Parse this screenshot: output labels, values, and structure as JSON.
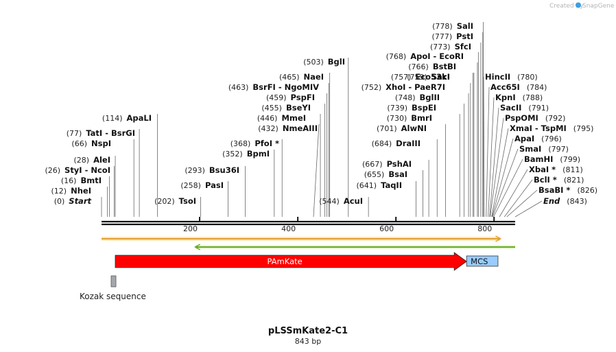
{
  "brand": {
    "created_by": "Created by",
    "name": "SnapGene"
  },
  "sequence": {
    "name": "pLSSmKate2-C1",
    "length_label": "843 bp",
    "length_bp": 843
  },
  "axis": {
    "ticks": [
      {
        "bp": 200,
        "label": "200"
      },
      {
        "bp": 400,
        "label": "400"
      },
      {
        "bp": 600,
        "label": "600"
      },
      {
        "bp": 800,
        "label": "800"
      }
    ]
  },
  "sites": [
    {
      "pos": 0,
      "pos_label": "(0)",
      "name": "Start",
      "italic": true
    },
    {
      "pos": 12,
      "pos_label": "(12)",
      "name": "NheI"
    },
    {
      "pos": 16,
      "pos_label": "(16)",
      "name": "BmtI"
    },
    {
      "pos": 26,
      "pos_label": "(26)",
      "name": "StyI  -  NcoI"
    },
    {
      "pos": 28,
      "pos_label": "(28)",
      "name": "AleI"
    },
    {
      "pos": 66,
      "pos_label": "(66)",
      "name": "NspI"
    },
    {
      "pos": 77,
      "pos_label": "(77)",
      "name": "TatI  -  BsrGI"
    },
    {
      "pos": 114,
      "pos_label": "(114)",
      "name": "ApaLI"
    },
    {
      "pos": 202,
      "pos_label": "(202)",
      "name": "TsoI"
    },
    {
      "pos": 258,
      "pos_label": "(258)",
      "name": "PasI"
    },
    {
      "pos": 293,
      "pos_label": "(293)",
      "name": "Bsu36I"
    },
    {
      "pos": 352,
      "pos_label": "(352)",
      "name": "BpmI"
    },
    {
      "pos": 368,
      "pos_label": "(368)",
      "name": "PfoI *"
    },
    {
      "pos": 432,
      "pos_label": "(432)",
      "name": "NmeAIII"
    },
    {
      "pos": 446,
      "pos_label": "(446)",
      "name": "MmeI"
    },
    {
      "pos": 455,
      "pos_label": "(455)",
      "name": "BseYI"
    },
    {
      "pos": 459,
      "pos_label": "(459)",
      "name": "PspFI"
    },
    {
      "pos": 463,
      "pos_label": "(463)",
      "name": "BsrFI  -  NgoMIV"
    },
    {
      "pos": 465,
      "pos_label": "(465)",
      "name": "NaeI"
    },
    {
      "pos": 503,
      "pos_label": "(503)",
      "name": "BglI"
    },
    {
      "pos": 544,
      "pos_label": "(544)",
      "name": "AcuI"
    },
    {
      "pos": 641,
      "pos_label": "(641)",
      "name": "TaqII"
    },
    {
      "pos": 655,
      "pos_label": "(655)",
      "name": "BsaI"
    },
    {
      "pos": 667,
      "pos_label": "(667)",
      "name": "PshAI"
    },
    {
      "pos": 684,
      "pos_label": "(684)",
      "name": "DraIII"
    },
    {
      "pos": 701,
      "pos_label": "(701)",
      "name": "AlwNI"
    },
    {
      "pos": 730,
      "pos_label": "(730)",
      "name": "BmrI"
    },
    {
      "pos": 739,
      "pos_label": "(739)",
      "name": "BspEI"
    },
    {
      "pos": 748,
      "pos_label": "(748)",
      "name": "BglII"
    },
    {
      "pos": 752,
      "pos_label": "(752)",
      "name": "XhoI  -  PaeR7I"
    },
    {
      "pos": 757,
      "pos_label": "(757)",
      "name": "Eco53kI"
    },
    {
      "pos": 759,
      "pos_label": "(759)",
      "name": "SacI"
    },
    {
      "pos": 766,
      "pos_label": "(766)",
      "name": "BstBI"
    },
    {
      "pos": 768,
      "pos_label": "(768)",
      "name": "ApoI  -  EcoRI"
    },
    {
      "pos": 773,
      "pos_label": "(773)",
      "name": "SfcI"
    },
    {
      "pos": 777,
      "pos_label": "(777)",
      "name": "PstI"
    },
    {
      "pos": 778,
      "pos_label": "(778)",
      "name": "SalI"
    },
    {
      "pos": 780,
      "pos_label": "(780)",
      "name": "HincII"
    },
    {
      "pos": 784,
      "pos_label": "(784)",
      "name": "Acc65I"
    },
    {
      "pos": 788,
      "pos_label": "(788)",
      "name": "KpnI"
    },
    {
      "pos": 791,
      "pos_label": "(791)",
      "name": "SacII"
    },
    {
      "pos": 792,
      "pos_label": "(792)",
      "name": "PspOMI"
    },
    {
      "pos": 795,
      "pos_label": "(795)",
      "name": "XmaI  -  TspMI"
    },
    {
      "pos": 796,
      "pos_label": "(796)",
      "name": "ApaI"
    },
    {
      "pos": 797,
      "pos_label": "(797)",
      "name": "SmaI"
    },
    {
      "pos": 799,
      "pos_label": "(799)",
      "name": "BamHI"
    },
    {
      "pos": 811,
      "pos_label": "(811)",
      "name": "XbaI *"
    },
    {
      "pos": 821,
      "pos_label": "(821)",
      "name": "BclI *"
    },
    {
      "pos": 826,
      "pos_label": "(826)",
      "name": "BsaBI *"
    },
    {
      "pos": 843,
      "pos_label": "(843)",
      "name": "End",
      "italic": true
    }
  ],
  "features": [
    {
      "name": "PAmKate",
      "start": 28,
      "end": 744,
      "color": "#ff0000",
      "kind": "arrow"
    },
    {
      "name": "MCS",
      "start": 744,
      "end": 808,
      "color": "#99ccff",
      "kind": "box"
    },
    {
      "name": "Kozak sequence",
      "start": 17,
      "end": 26,
      "color": "#a5a7ad",
      "kind": "small-box"
    }
  ],
  "orfs": [
    {
      "start": 0,
      "end": 813,
      "direction": "forward",
      "color": "#e0a030"
    },
    {
      "start": 191,
      "end": 843,
      "direction": "reverse",
      "color": "#66aa22"
    }
  ],
  "colors": {
    "backbone": "#111111",
    "lines": "#666666"
  }
}
